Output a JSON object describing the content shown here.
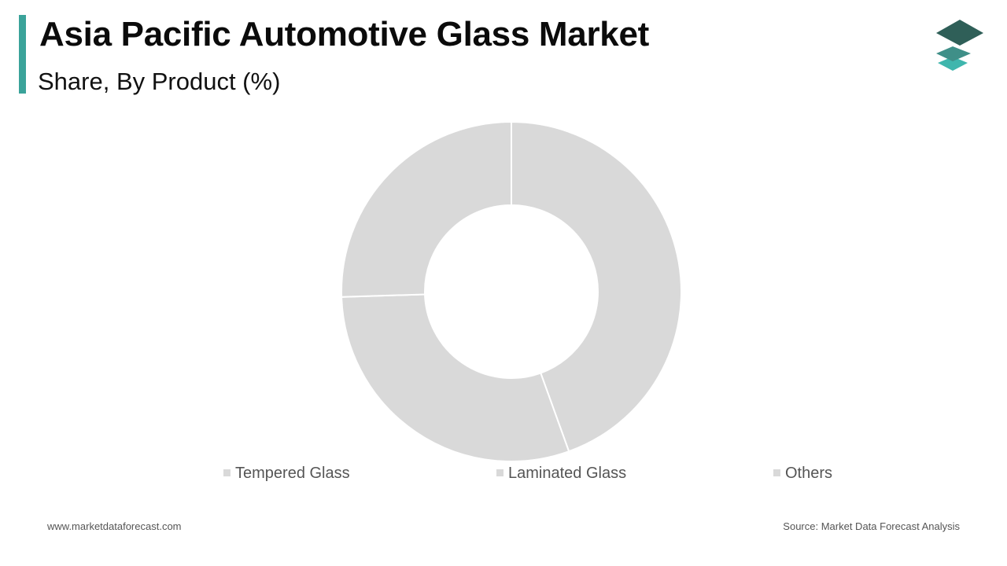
{
  "header": {
    "title": "Asia Pacific Automotive Glass Market",
    "subtitle": "Share, By Product (%)"
  },
  "colors": {
    "accent": "#3aa39a",
    "slice_fill": "#d9d9d9",
    "slice_border": "#ffffff",
    "legend_marker": "#d9d9d9"
  },
  "logo": {
    "icon": "stacked-layers-logo-icon"
  },
  "chart_data": {
    "type": "pie",
    "donut": true,
    "legend_position": "bottom",
    "categories": [
      "Tempered Glass",
      "Laminated Glass",
      "Others"
    ],
    "values": [
      44.5,
      30.0,
      25.5
    ]
  },
  "footer": {
    "website": "www.marketdataforecast.com",
    "source": "Source: Market Data Forecast Analysis"
  }
}
